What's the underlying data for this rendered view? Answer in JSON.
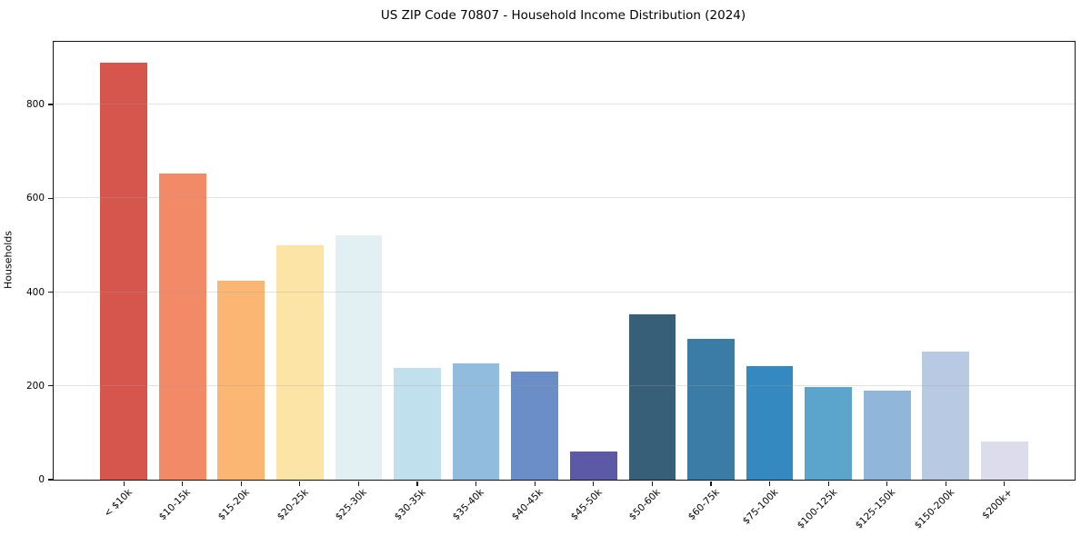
{
  "chart_data": {
    "type": "bar",
    "title": "US ZIP Code 70807 - Household Income Distribution (2024)",
    "xlabel": "",
    "ylabel": "Households",
    "categories": [
      "< $10k",
      "$10-15k",
      "$15-20k",
      "$20-25k",
      "$25-30k",
      "$30-35k",
      "$35-40k",
      "$40-45k",
      "$45-50k",
      "$50-60k",
      "$60-75k",
      "$75-100k",
      "$100-125k",
      "$125-150k",
      "$150-200k",
      "$200k+"
    ],
    "values": [
      890,
      653,
      425,
      500,
      521,
      238,
      248,
      230,
      61,
      352,
      300,
      243,
      198,
      190,
      274,
      82
    ],
    "bar_colors": [
      "#d6564e",
      "#f28a67",
      "#fab672",
      "#fce4a6",
      "#e2f0f3",
      "#bfe0ec",
      "#92bcdd",
      "#6a8ec5",
      "#5c5aa7",
      "#375f78",
      "#3a7ca6",
      "#348ac0",
      "#5ba4cc",
      "#90b6d9",
      "#b7c9e3",
      "#dcdcec"
    ],
    "ylim": [
      0,
      934
    ],
    "yticks": [
      0,
      200,
      400,
      600,
      800
    ],
    "grid": "horizontal",
    "x_tick_rotation": 45,
    "legend": "none",
    "background": "#ffffff"
  }
}
